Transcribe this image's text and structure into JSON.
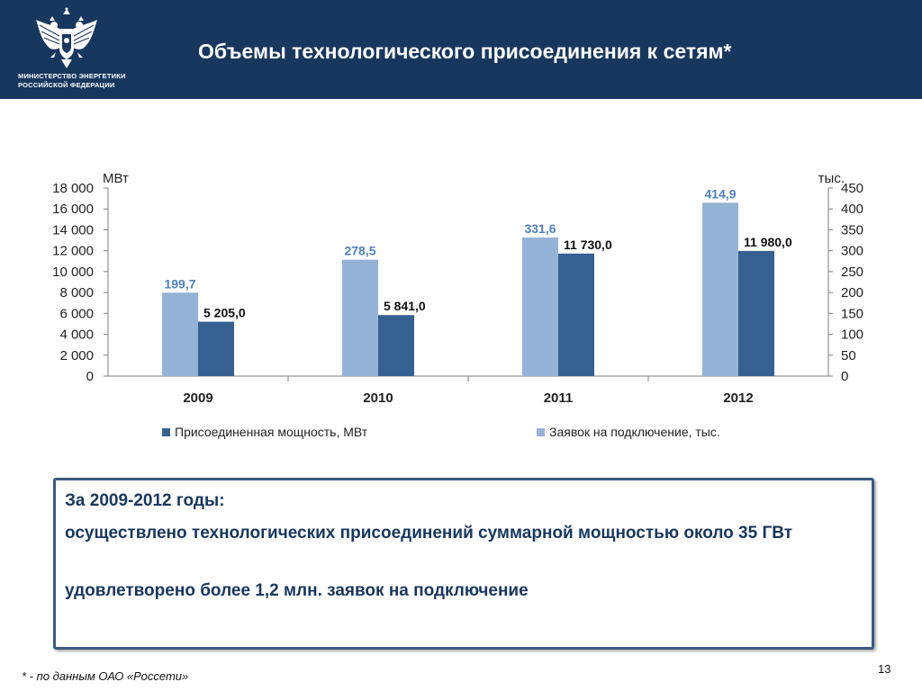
{
  "header": {
    "title": "Объемы технологического присоединения к сетям*",
    "org_line1": "МИНИСТЕРСТВО ЭНЕРГЕТИКИ",
    "org_line2": "РОССИЙСКОЙ ФЕДЕРАЦИИ",
    "logo_icon": "double-headed-eagle-icon",
    "background_color": "#17375e"
  },
  "chart_data": {
    "type": "bar",
    "categories": [
      "2009",
      "2010",
      "2011",
      "2012"
    ],
    "series": [
      {
        "name": "Заявок на подключение, тыс.",
        "axis": "right",
        "color": "#95b3d7",
        "values": [
          199.7,
          278.5,
          331.6,
          414.9
        ],
        "labels": [
          "199,7",
          "278,5",
          "331,6",
          "414,9"
        ]
      },
      {
        "name": "Присоединенная мощность, МВт",
        "axis": "left",
        "color": "#376092",
        "values": [
          5205.0,
          5841.0,
          11730.0,
          11980.0
        ],
        "labels": [
          "5 205,0",
          "5 841,0",
          "11 730,0",
          "11 980,0"
        ]
      }
    ],
    "y_left": {
      "unit": "МВт",
      "ylim": [
        0,
        18000
      ],
      "ticks": [
        "0",
        "2 000",
        "4 000",
        "6 000",
        "8 000",
        "10 000",
        "12 000",
        "14 000",
        "16 000",
        "18 000"
      ]
    },
    "y_right": {
      "unit": "тыс.",
      "ylim": [
        0,
        450
      ],
      "ticks": [
        "0",
        "50",
        "100",
        "150",
        "200",
        "250",
        "300",
        "350",
        "400",
        "450"
      ]
    },
    "grid": false,
    "legend_position": "bottom",
    "legend": [
      "Присоединенная мощность, МВт",
      "Заявок на подключение, тыс."
    ]
  },
  "summary": {
    "heading": "За 2009-2012 годы:",
    "line1": "осуществлено технологических присоединений суммарной мощностью около 35 ГВт",
    "line2": "удовлетворено более 1,2 млн. заявок на подключение"
  },
  "footnote": "* - по данным ОАО «Россети»",
  "page_number": "13"
}
